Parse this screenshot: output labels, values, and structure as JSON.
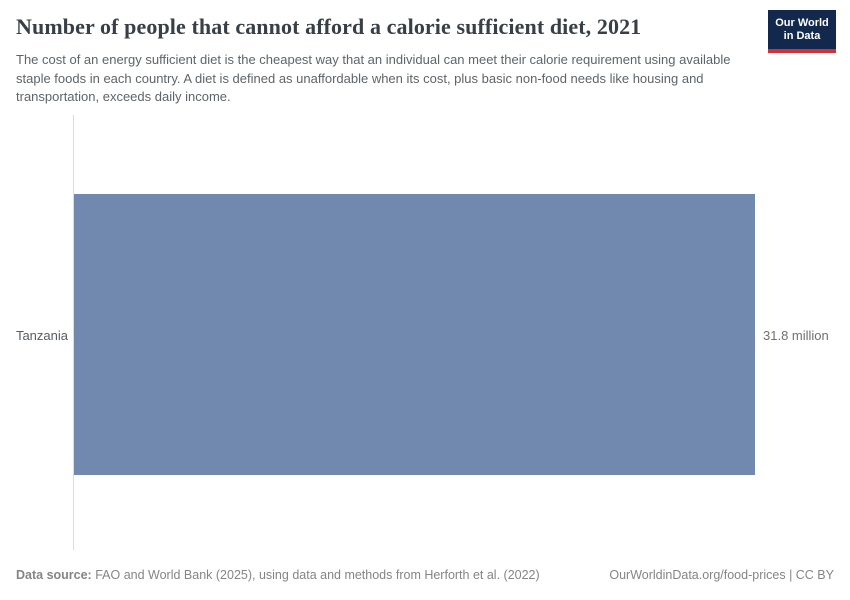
{
  "header": {
    "title": "Number of people that cannot afford a calorie sufficient diet, 2021",
    "subtitle": "The cost of an energy sufficient diet is the cheapest way that an individual can meet their calorie requirement using available staple foods in each country. A diet is defined as unaffordable when its cost, plus basic non-food needs like housing and transportation, exceeds daily income.",
    "logo": {
      "line1": "Our World",
      "line2": "in Data"
    }
  },
  "chart_data": {
    "type": "bar",
    "orientation": "horizontal",
    "title": "Number of people that cannot afford a calorie sufficient diet, 2021",
    "year": "2021",
    "categories": [
      "Tanzania"
    ],
    "values": [
      31.8
    ],
    "unit": "million people",
    "value_labels": [
      "31.8 million"
    ],
    "xlim": [
      0,
      31.8
    ],
    "axis_tick_labels_visible": false,
    "grid": false,
    "legend": "none",
    "bar_color": "#7189ae"
  },
  "colors": {
    "bar": "#7189ae",
    "title_text": "#383f46",
    "subtitle_text": "#5e6469",
    "axis_line": "#dcdcdc",
    "entity_label": "#565d63",
    "value_label": "#707070",
    "footer_text": "#858585",
    "logo_background": "#12294d",
    "logo_accent": "#d13239"
  },
  "footer": {
    "source_label": "Data source:",
    "source_text": "FAO and World Bank (2025), using data and methods from Herforth et al. (2022)",
    "link": "OurWorldinData.org/food-prices | CC BY"
  }
}
